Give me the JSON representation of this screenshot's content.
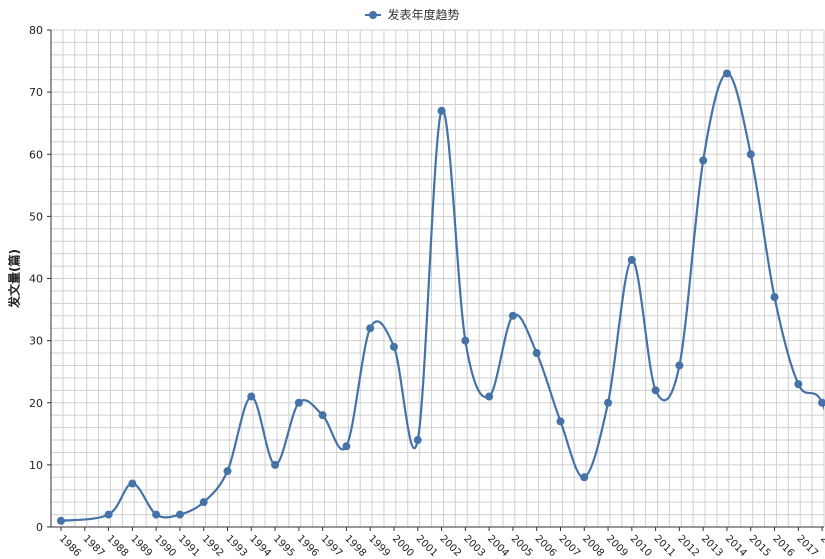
{
  "chart_data": {
    "type": "line",
    "title": "",
    "xlabel": "",
    "ylabel": "发文量(篇)",
    "ylim": [
      0,
      80
    ],
    "yticks": [
      0,
      10,
      20,
      30,
      40,
      50,
      60,
      70,
      80
    ],
    "grid": true,
    "legend_position": "top-center",
    "colors": {
      "series": "#4572a7",
      "grid": "#d0d0d0",
      "axis": "#333333"
    },
    "categories": [
      "1986",
      "1987",
      "1988",
      "1989",
      "1990",
      "1991",
      "1992",
      "1993",
      "1994",
      "1995",
      "1996",
      "1997",
      "1998",
      "1999",
      "2000",
      "2001",
      "2002",
      "2003",
      "2004",
      "2005",
      "2006",
      "2007",
      "2008",
      "2009",
      "2010",
      "2011",
      "2012",
      "2013",
      "2014",
      "2015",
      "2016",
      "2017",
      "2018"
    ],
    "series": [
      {
        "name": "发表年度趋势",
        "points": [
          {
            "x": "1986",
            "y": 1
          },
          {
            "x": "1988",
            "y": 2
          },
          {
            "x": "1989",
            "y": 7
          },
          {
            "x": "1990",
            "y": 2
          },
          {
            "x": "1991",
            "y": 2
          },
          {
            "x": "1992",
            "y": 4
          },
          {
            "x": "1993",
            "y": 9
          },
          {
            "x": "1994",
            "y": 21
          },
          {
            "x": "1995",
            "y": 10
          },
          {
            "x": "1996",
            "y": 20
          },
          {
            "x": "1997",
            "y": 18
          },
          {
            "x": "1998",
            "y": 13
          },
          {
            "x": "1999",
            "y": 32
          },
          {
            "x": "2000",
            "y": 29
          },
          {
            "x": "2001",
            "y": 14
          },
          {
            "x": "2002",
            "y": 67
          },
          {
            "x": "2003",
            "y": 30
          },
          {
            "x": "2004",
            "y": 21
          },
          {
            "x": "2005",
            "y": 34
          },
          {
            "x": "2006",
            "y": 28
          },
          {
            "x": "2007",
            "y": 17
          },
          {
            "x": "2008",
            "y": 8
          },
          {
            "x": "2009",
            "y": 20
          },
          {
            "x": "2010",
            "y": 43
          },
          {
            "x": "2011",
            "y": 22
          },
          {
            "x": "2012",
            "y": 26
          },
          {
            "x": "2013",
            "y": 59
          },
          {
            "x": "2014",
            "y": 73
          },
          {
            "x": "2015",
            "y": 60
          },
          {
            "x": "2016",
            "y": 37
          },
          {
            "x": "2017",
            "y": 23
          },
          {
            "x": "2018",
            "y": 20
          }
        ]
      }
    ]
  }
}
